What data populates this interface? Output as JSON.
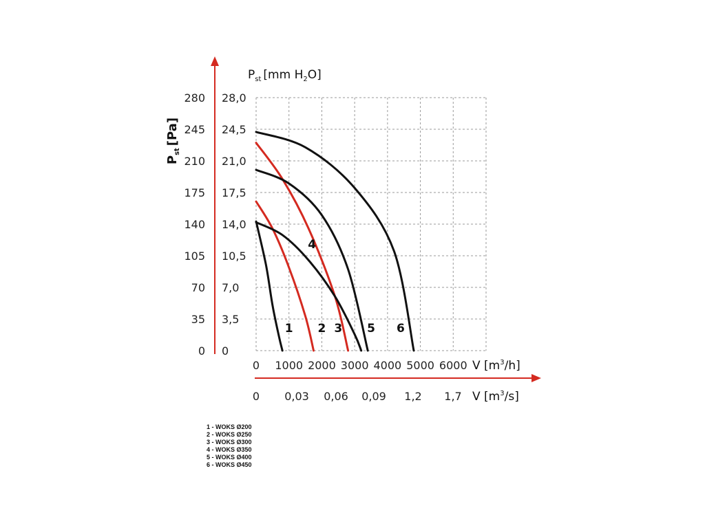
{
  "chart_data": {
    "type": "line",
    "y_axis_pa": {
      "label_main": "P",
      "label_sub": "st",
      "label_unit": "[Pa]",
      "ticks": [
        "0",
        "35",
        "70",
        "105",
        "140",
        "175",
        "210",
        "245",
        "280"
      ],
      "ylim": [
        0,
        280
      ]
    },
    "y_axis_mmh2o": {
      "label_main": "P",
      "label_sub": "st",
      "label_unit_pre": "[mm H",
      "label_unit_sub": "2",
      "label_unit_post": "O]",
      "ticks": [
        "0",
        "3,5",
        "7,0",
        "10,5",
        "14,0",
        "17,5",
        "21,0",
        "24,5",
        "28,0"
      ],
      "ylim": [
        0,
        28
      ]
    },
    "x_axis_m3h": {
      "label_pre": "V [m",
      "label_sup": "3",
      "label_post": "/h]",
      "ticks": [
        "0",
        "1000",
        "2000",
        "3000",
        "4000",
        "5000",
        "6000"
      ],
      "xlim": [
        0,
        7000
      ]
    },
    "x_axis_m3s": {
      "label_pre": "V [m",
      "label_sup": "3",
      "label_post": "/s]",
      "ticks": [
        "0",
        "0,03",
        "0,06",
        "0,09",
        "1,2",
        "1,7"
      ]
    },
    "grid": true,
    "series": [
      {
        "label": "1",
        "color": "#111111",
        "x": [
          0,
          300,
          500,
          700,
          800
        ],
        "y": [
          143,
          95,
          50,
          15,
          0
        ]
      },
      {
        "label": "2",
        "color": "#d42a20",
        "x": [
          0,
          500,
          1000,
          1500,
          1750
        ],
        "y": [
          165,
          135,
          92,
          38,
          0
        ]
      },
      {
        "label": "3",
        "color": "#d42a20",
        "x": [
          0,
          800,
          1600,
          2400,
          2800
        ],
        "y": [
          230,
          190,
          135,
          60,
          0
        ]
      },
      {
        "label": "4",
        "color": "#111111",
        "x": [
          0,
          800,
          1600,
          2400,
          3000,
          3200
        ],
        "y": [
          142,
          128,
          100,
          60,
          18,
          0
        ]
      },
      {
        "label": "5",
        "color": "#111111",
        "x": [
          0,
          1000,
          2000,
          2800,
          3400
        ],
        "y": [
          200,
          185,
          150,
          90,
          0
        ]
      },
      {
        "label": "6",
        "color": "#111111",
        "x": [
          0,
          1500,
          3000,
          4200,
          4800
        ],
        "y": [
          242,
          225,
          180,
          110,
          0
        ]
      }
    ],
    "curve_labels": [
      {
        "text": "1",
        "x": 1000,
        "y": 25
      },
      {
        "text": "2",
        "x": 2000,
        "y": 25
      },
      {
        "text": "3",
        "x": 2500,
        "y": 25
      },
      {
        "text": "4",
        "x": 1700,
        "y": 118
      },
      {
        "text": "5",
        "x": 3500,
        "y": 25
      },
      {
        "text": "6",
        "x": 4400,
        "y": 25
      }
    ],
    "legend": [
      "1 - WOKS Ø200",
      "2 - WOKS Ø250",
      "3 - WOKS Ø300",
      "4 - WOKS Ø350",
      "5 - WOKS Ø400",
      "6 - WOKS Ø450"
    ]
  }
}
